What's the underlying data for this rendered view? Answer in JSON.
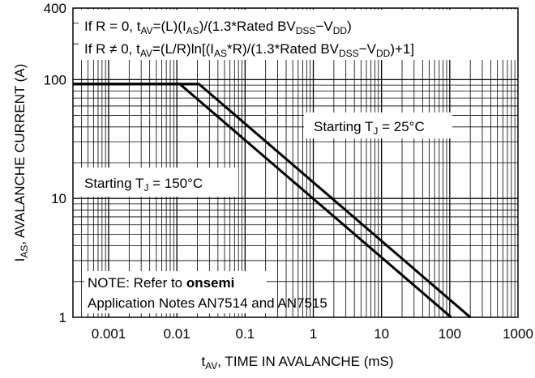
{
  "chart_data": {
    "type": "line",
    "x_scale": "log",
    "y_scale": "log",
    "xlim": [
      0.0003,
      1000
    ],
    "ylim": [
      1,
      400
    ],
    "grid": true,
    "xlabel": {
      "main": "t",
      "sub": "AV",
      "rest": ", TIME IN AVALANCHE (mS)"
    },
    "ylabel": {
      "main": "I",
      "sub": "AS",
      "rest": ", AVALANCHE CURRENT (A)"
    },
    "x_ticks": [
      {
        "value": 0.001,
        "label": "0.001"
      },
      {
        "value": 0.01,
        "label": "0.01"
      },
      {
        "value": 0.1,
        "label": "0.1"
      },
      {
        "value": 1,
        "label": "1"
      },
      {
        "value": 10,
        "label": "10"
      },
      {
        "value": 100,
        "label": "100"
      },
      {
        "value": 1000,
        "label": "1000"
      }
    ],
    "y_ticks": [
      {
        "value": 1,
        "label": "1"
      },
      {
        "value": 10,
        "label": "10"
      },
      {
        "value": 100,
        "label": "100"
      },
      {
        "value": 400,
        "label": "400"
      }
    ],
    "series": [
      {
        "name": "Starting T_J = 25°C",
        "x": [
          0.0003,
          0.021,
          200
        ],
        "y": [
          92,
          92,
          1
        ]
      },
      {
        "name": "Starting T_J = 150°C",
        "x": [
          0.0003,
          0.011,
          105
        ],
        "y": [
          92,
          92,
          1
        ]
      }
    ],
    "annotations": {
      "formula1": {
        "a": "If R = 0, t",
        "a_sub": "AV",
        "b": "=(L)(I",
        "b_sub": "AS",
        "c": ")/(1.3*Rated BV",
        "c_sub": "DSS",
        "d": "−V",
        "d_sub": "DD",
        "e": ")"
      },
      "formula2": {
        "a": "If R ≠ 0, t",
        "a_sub": "AV",
        "b": "=(L/R)ln[(I",
        "b_sub": "AS",
        "c": "*R)/(1.3*Rated BV",
        "c_sub": "DSS",
        "d": "−V",
        "d_sub": "DD",
        "e": ")+1]"
      },
      "label_25": {
        "text": "Starting T",
        "sub": "J",
        "rest": " = 25°C"
      },
      "label_150": {
        "text": "Starting T",
        "sub": "J",
        "rest": " = 150°C"
      },
      "note1": {
        "text": "NOTE: Refer to ",
        "bold": "onsemi"
      },
      "note2": {
        "text": "Application Notes AN7514 and AN7515"
      }
    }
  }
}
